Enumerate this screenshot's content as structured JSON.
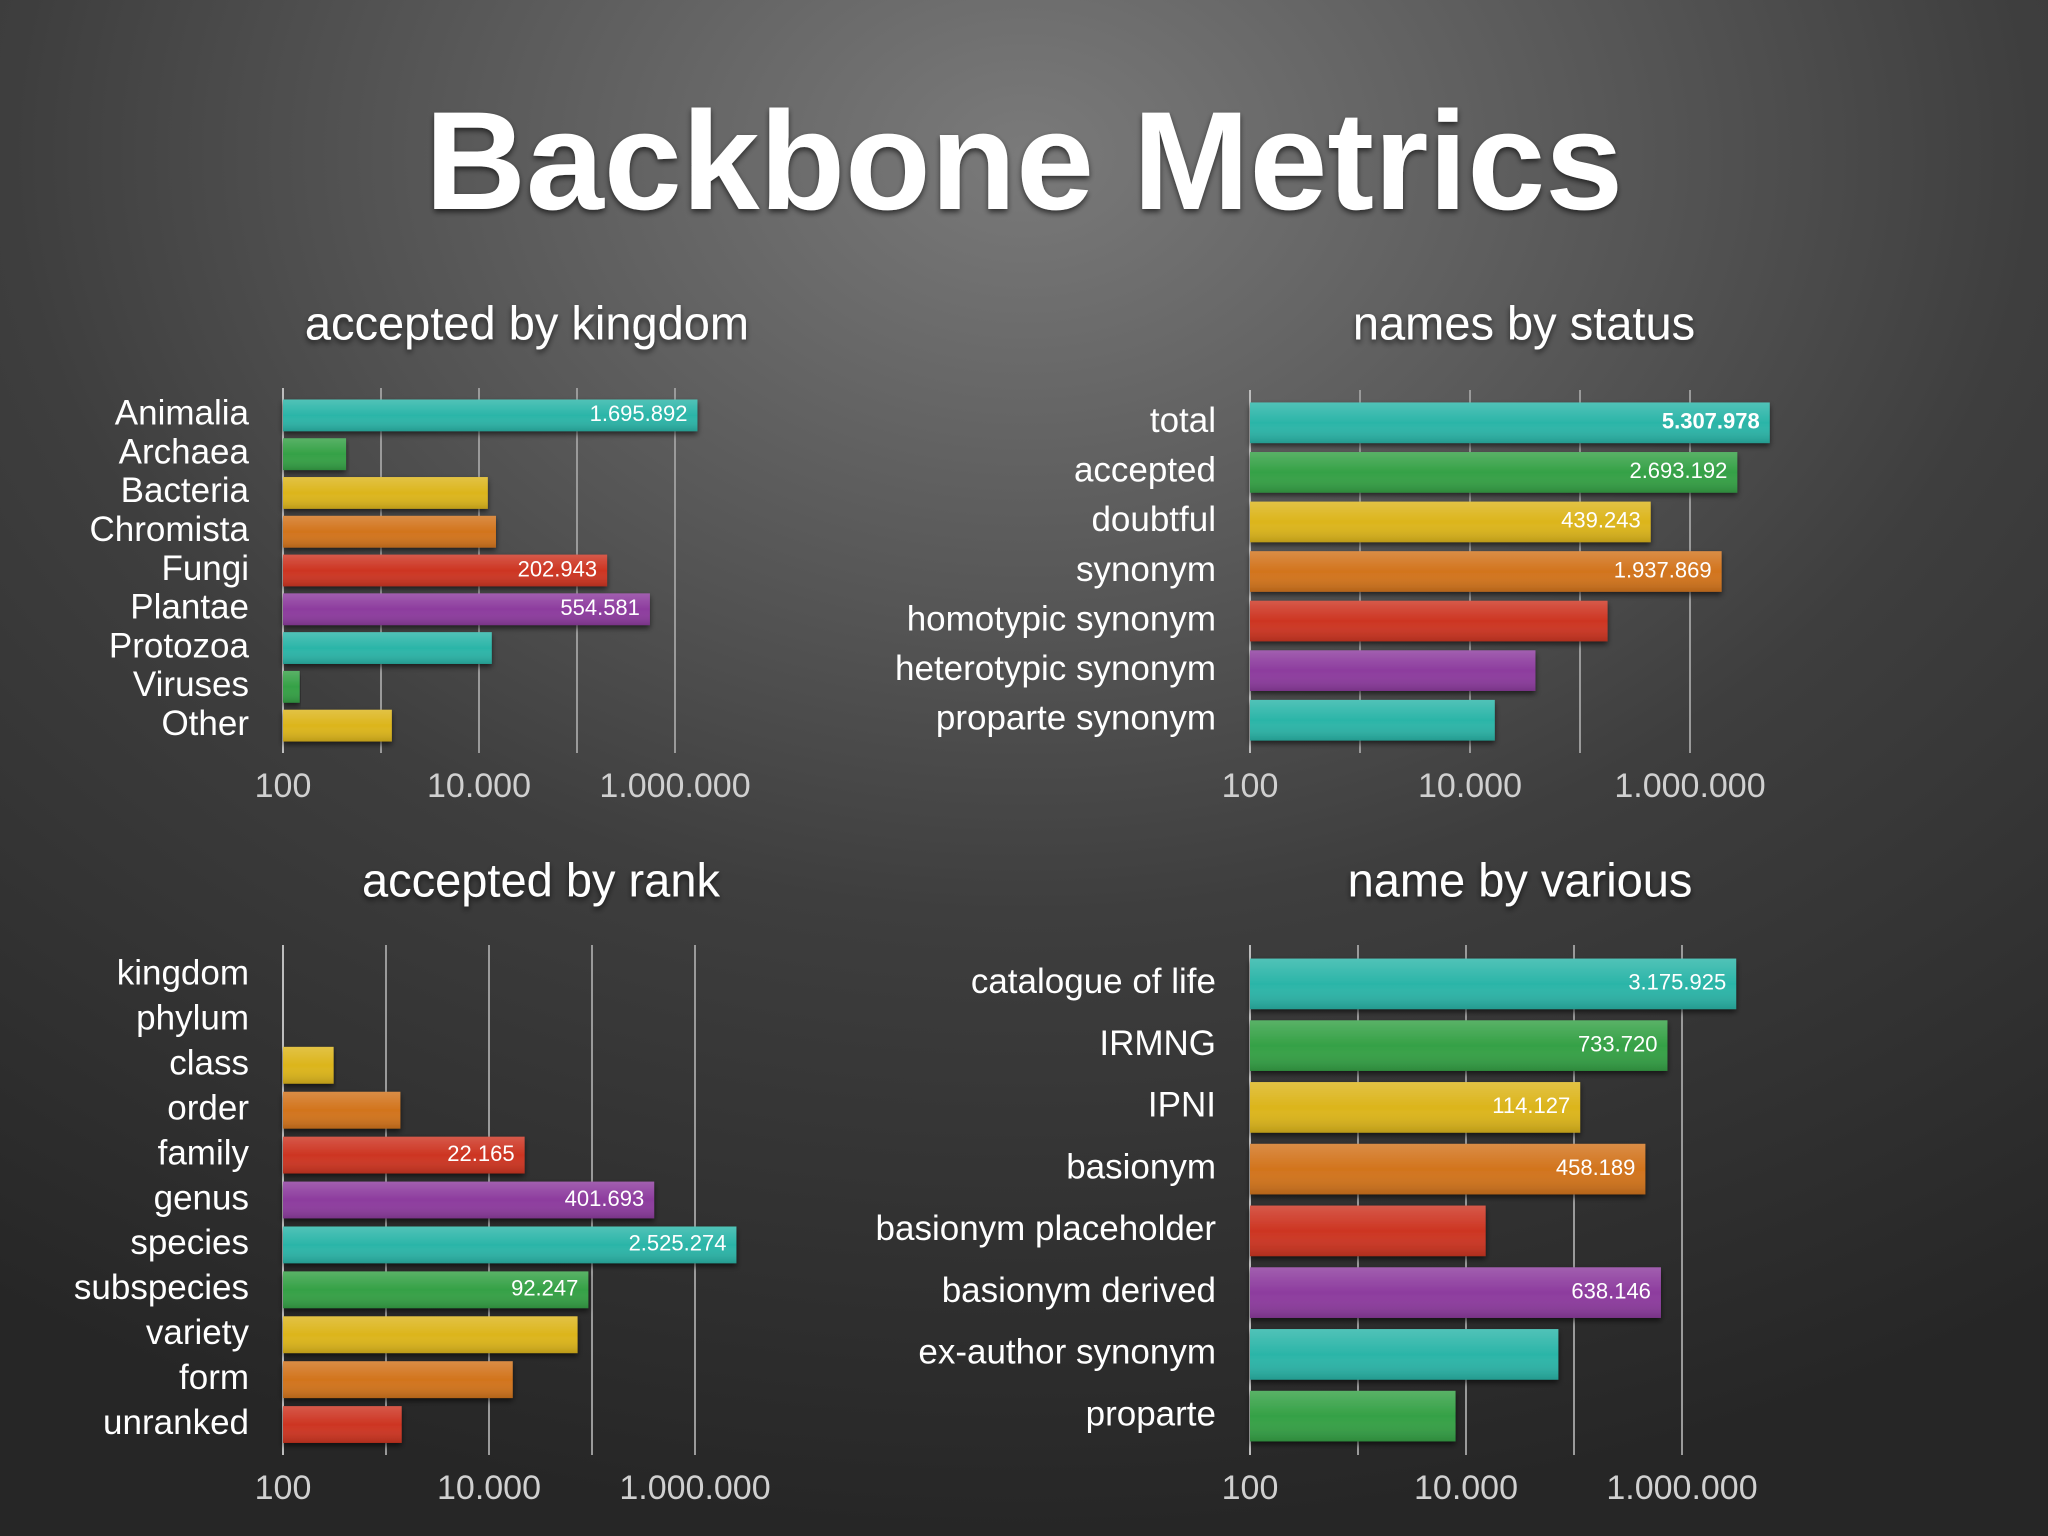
{
  "title": "Backbone Metrics",
  "chart_data": [
    {
      "type": "bar",
      "orientation": "horizontal",
      "title": "accepted by kingdom",
      "log_scale": true,
      "grid": true,
      "categories": [
        "Animalia",
        "Archaea",
        "Bacteria",
        "Chromista",
        "Fungi",
        "Plantae",
        "Protozoa",
        "Viruses",
        "Other"
      ],
      "values": [
        1695892,
        440,
        12300,
        14900,
        202943,
        554581,
        13500,
        148,
        1290
      ],
      "value_labels": [
        "1.695.892",
        null,
        null,
        null,
        "202.943",
        "554.581",
        null,
        null,
        null
      ],
      "colors": [
        "#2bb5a8",
        "#35a146",
        "#dcb51c",
        "#d2741d",
        "#cd3522",
        "#8d3c9e",
        "#2bb5a8",
        "#35a146",
        "#dcb51c"
      ],
      "xlim": [
        100,
        10000000
      ],
      "xticks": [
        100,
        {
          "value": 10000,
          "label": "10.000"
        },
        {
          "value": 1000000,
          "label": "1.000.000"
        }
      ],
      "minor_ticks": [
        1000,
        100000
      ]
    },
    {
      "type": "bar",
      "orientation": "horizontal",
      "title": "names by status",
      "log_scale": true,
      "grid": true,
      "categories": [
        "total",
        "accepted",
        "doubtful",
        "synonym",
        "homotypic synonym",
        "heterotypic synonym",
        "proparte synonym"
      ],
      "values": [
        5307978,
        2693192,
        439243,
        1937869,
        178000,
        39400,
        16800
      ],
      "value_labels": [
        "5.307.978",
        "2.693.192",
        "439.243",
        "1.937.869",
        null,
        null,
        null
      ],
      "colors": [
        "#2bb5a8",
        "#35a146",
        "#dcb51c",
        "#d2741d",
        "#cd3522",
        "#8d3c9e",
        "#2bb5a8"
      ],
      "xlim": [
        100,
        10000000
      ],
      "xticks": [
        100,
        {
          "value": 10000,
          "label": "10.000"
        },
        {
          "value": 1000000,
          "label": "1.000.000"
        }
      ],
      "minor_ticks": [
        1000,
        100000
      ]
    },
    {
      "type": "bar",
      "orientation": "horizontal",
      "title": "accepted by rank",
      "log_scale": true,
      "grid": true,
      "categories": [
        "kingdom",
        "phylum",
        "class",
        "order",
        "family",
        "genus",
        "species",
        "subspecies",
        "variety",
        "form",
        "unranked"
      ],
      "values": [
        9,
        100,
        310,
        1380,
        22165,
        401693,
        2525274,
        92247,
        72400,
        17000,
        1420
      ],
      "value_labels": [
        null,
        null,
        null,
        null,
        "22.165",
        "401.693",
        "2.525.274",
        "92.247",
        null,
        null,
        null
      ],
      "colors": [
        "#2bb5a8",
        "#35a146",
        "#dcb51c",
        "#d2741d",
        "#cd3522",
        "#8d3c9e",
        "#2bb5a8",
        "#35a146",
        "#dcb51c",
        "#d2741d",
        "#cd3522"
      ],
      "xlim": [
        100,
        10000000
      ],
      "xticks": [
        100,
        {
          "value": 10000,
          "label": "10.000"
        },
        {
          "value": 1000000,
          "label": "1.000.000"
        }
      ],
      "minor_ticks": [
        1000,
        100000
      ]
    },
    {
      "type": "bar",
      "orientation": "horizontal",
      "title": "name by various",
      "log_scale": true,
      "grid": true,
      "categories": [
        "catalogue of life",
        "IRMNG",
        "IPNI",
        "basionym",
        "basionym placeholder",
        "basionym derived",
        "ex-author synonym",
        "proparte"
      ],
      "values": [
        3175925,
        733720,
        114127,
        458189,
        15200,
        638146,
        71700,
        8000
      ],
      "value_labels": [
        "3.175.925",
        "733.720",
        "114.127",
        "458.189",
        null,
        "638.146",
        null,
        null
      ],
      "colors": [
        "#2bb5a8",
        "#35a146",
        "#dcb51c",
        "#d2741d",
        "#cd3522",
        "#8d3c9e",
        "#2bb5a8",
        "#35a146"
      ],
      "xlim": [
        100,
        10000000
      ],
      "xticks": [
        100,
        {
          "value": 10000,
          "label": "10.000"
        },
        {
          "value": 1000000,
          "label": "1.000.000"
        }
      ],
      "minor_ticks": [
        1000,
        100000
      ]
    }
  ]
}
